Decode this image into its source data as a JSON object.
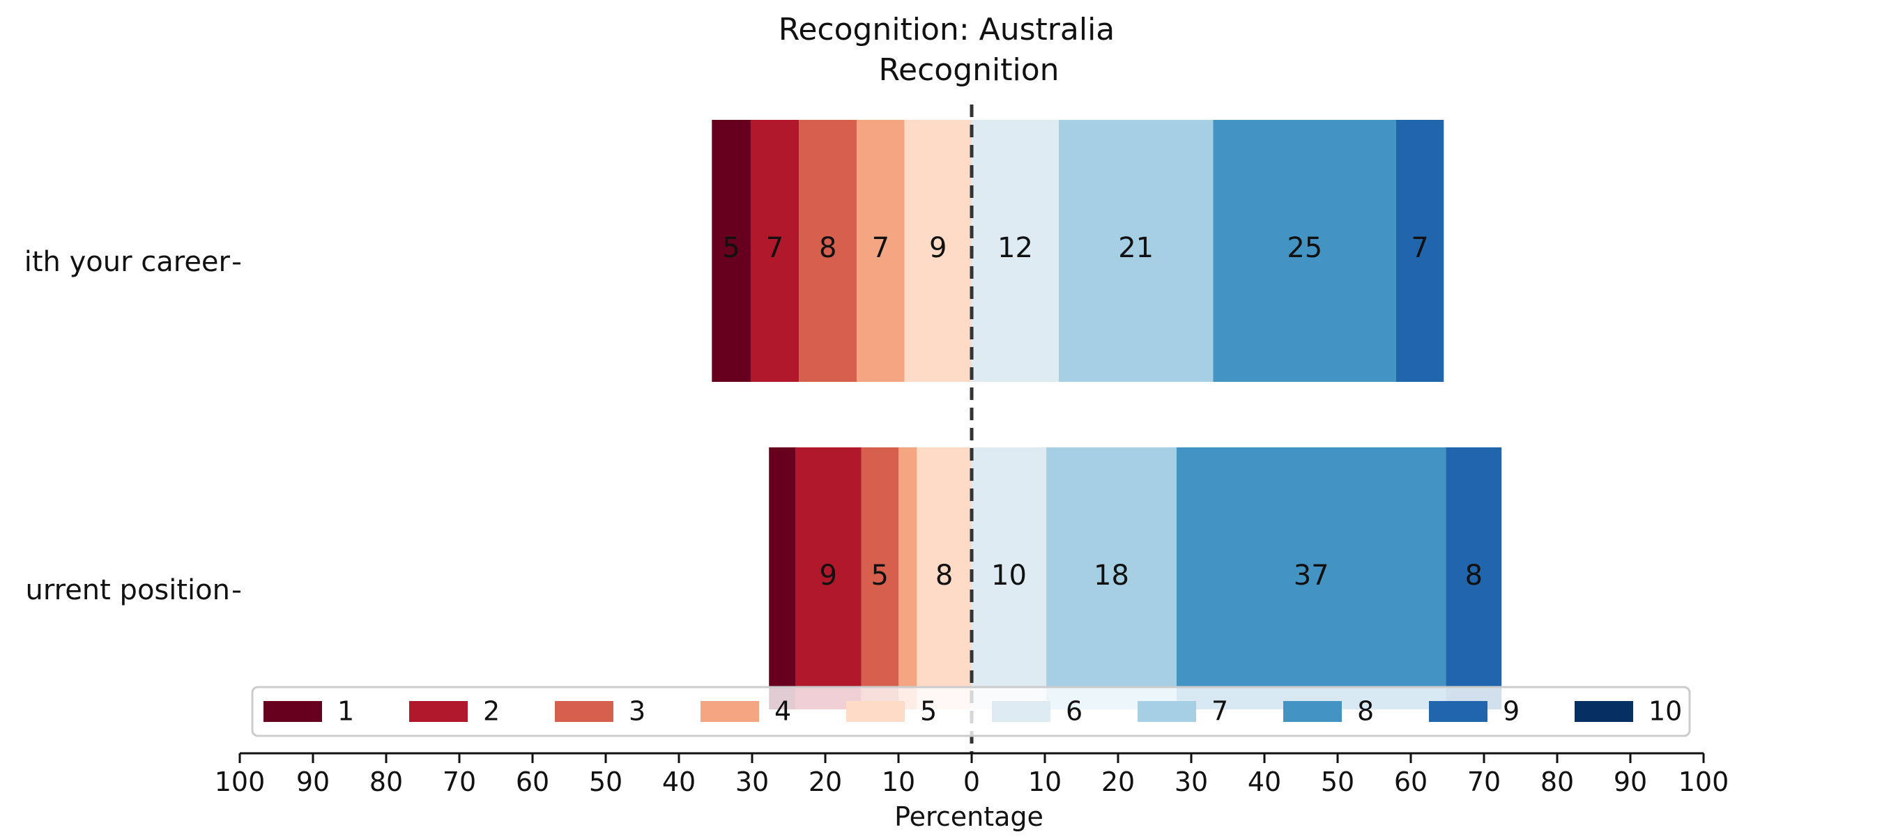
{
  "chart_data": {
    "type": "bar",
    "orientation": "horizontal",
    "stacked": "diverging",
    "title": "Recognition: Australia",
    "subtitle": "Recognition",
    "xlabel": "Percentage",
    "ylabel": "",
    "xlim": [
      -100,
      100
    ],
    "x_tick_labels": [
      "100",
      "90",
      "80",
      "70",
      "60",
      "50",
      "40",
      "30",
      "20",
      "10",
      "0",
      "10",
      "20",
      "30",
      "40",
      "50",
      "60",
      "70",
      "80",
      "90",
      "100"
    ],
    "categories": [
      "ith your career",
      "urrent position"
    ],
    "legend_position": "bottom",
    "series": [
      {
        "name": "1",
        "color": "#67001f",
        "values": [
          5.3,
          3.6
        ],
        "labels": [
          "5",
          ""
        ]
      },
      {
        "name": "2",
        "color": "#b2182b",
        "values": [
          6.6,
          9.0
        ],
        "labels": [
          "7",
          "9"
        ]
      },
      {
        "name": "3",
        "color": "#d6604d",
        "values": [
          7.9,
          5.1
        ],
        "labels": [
          "8",
          "5"
        ]
      },
      {
        "name": "4",
        "color": "#f4a582",
        "values": [
          6.5,
          2.5
        ],
        "labels": [
          "7",
          ""
        ]
      },
      {
        "name": "5",
        "color": "#fddbc7",
        "values": [
          9.2,
          7.5
        ],
        "labels": [
          "9",
          "8"
        ]
      },
      {
        "name": "6",
        "color": "#deebf3",
        "values": [
          11.9,
          10.2
        ],
        "labels": [
          "12",
          "10"
        ]
      },
      {
        "name": "7",
        "color": "#a7cfe4",
        "values": [
          21.1,
          17.8
        ],
        "labels": [
          "21",
          "18"
        ]
      },
      {
        "name": "8",
        "color": "#4393c3",
        "values": [
          25.0,
          36.8
        ],
        "labels": [
          "25",
          "37"
        ]
      },
      {
        "name": "9",
        "color": "#2166ac",
        "values": [
          6.5,
          7.6
        ],
        "labels": [
          "7",
          "8"
        ]
      },
      {
        "name": "10",
        "color": "#053061",
        "values": [
          0,
          0
        ],
        "labels": [
          "",
          ""
        ]
      }
    ]
  }
}
